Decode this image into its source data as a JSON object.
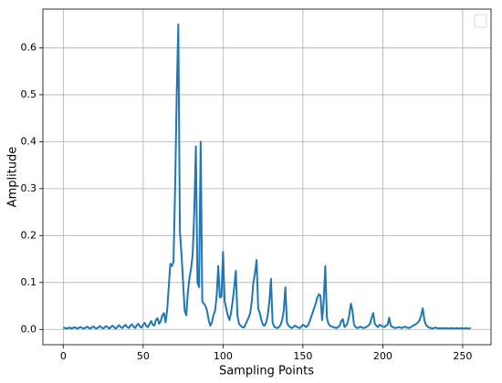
{
  "chart_data": {
    "type": "line",
    "xlabel": "Sampling Points",
    "ylabel": "Amplitude",
    "xlim": [
      -12.75,
      267.75
    ],
    "ylim": [
      -0.0325,
      0.6825
    ],
    "xticks": [
      0,
      50,
      100,
      150,
      200,
      250
    ],
    "yticks": [
      {
        "value": 0,
        "label": "0.0"
      },
      0.1,
      0.2,
      0.3,
      0.4,
      0.5,
      0.6
    ],
    "grid": true,
    "x": [
      0,
      1,
      2,
      3,
      4,
      5,
      6,
      7,
      8,
      9,
      10,
      11,
      12,
      13,
      14,
      15,
      16,
      17,
      18,
      19,
      20,
      21,
      22,
      23,
      24,
      25,
      26,
      27,
      28,
      29,
      30,
      31,
      32,
      33,
      34,
      35,
      36,
      37,
      38,
      39,
      40,
      41,
      42,
      43,
      44,
      45,
      46,
      47,
      48,
      49,
      50,
      51,
      52,
      53,
      54,
      55,
      56,
      57,
      58,
      59,
      60,
      61,
      62,
      63,
      64,
      65,
      66,
      67,
      68,
      69,
      70,
      71,
      72,
      73,
      74,
      75,
      76,
      77,
      78,
      79,
      80,
      81,
      82,
      83,
      84,
      85,
      86,
      87,
      88,
      89,
      90,
      91,
      92,
      93,
      94,
      95,
      96,
      97,
      98,
      99,
      100,
      101,
      102,
      103,
      104,
      105,
      106,
      107,
      108,
      109,
      110,
      111,
      112,
      113,
      114,
      115,
      116,
      117,
      118,
      119,
      120,
      121,
      122,
      123,
      124,
      125,
      126,
      127,
      128,
      129,
      130,
      131,
      132,
      133,
      134,
      135,
      136,
      137,
      138,
      139,
      140,
      141,
      142,
      143,
      144,
      145,
      146,
      147,
      148,
      149,
      150,
      151,
      152,
      153,
      154,
      155,
      156,
      157,
      158,
      159,
      160,
      161,
      162,
      163,
      164,
      165,
      166,
      167,
      168,
      169,
      170,
      171,
      172,
      173,
      174,
      175,
      176,
      177,
      178,
      179,
      180,
      181,
      182,
      183,
      184,
      185,
      186,
      187,
      188,
      189,
      190,
      191,
      192,
      193,
      194,
      195,
      196,
      197,
      198,
      199,
      200,
      201,
      202,
      203,
      204,
      205,
      206,
      207,
      208,
      209,
      210,
      211,
      212,
      213,
      214,
      215,
      216,
      217,
      218,
      219,
      220,
      221,
      222,
      223,
      224,
      225,
      226,
      227,
      228,
      229,
      230,
      231,
      232,
      233,
      234,
      235,
      236,
      237,
      238,
      239,
      240,
      241,
      242,
      243,
      244,
      245,
      246,
      247,
      248,
      249,
      250,
      251,
      252,
      253,
      254,
      255
    ],
    "series": [
      {
        "color": "#1f77b4",
        "values": [
          0.004,
          0.003,
          0.002,
          0.003,
          0.004,
          0.002,
          0.003,
          0.005,
          0.003,
          0.002,
          0.004,
          0.005,
          0.003,
          0.002,
          0.004,
          0.006,
          0.003,
          0.002,
          0.005,
          0.006,
          0.003,
          0.002,
          0.005,
          0.007,
          0.004,
          0.002,
          0.005,
          0.007,
          0.004,
          0.002,
          0.006,
          0.008,
          0.004,
          0.002,
          0.006,
          0.009,
          0.005,
          0.003,
          0.007,
          0.01,
          0.005,
          0.003,
          0.008,
          0.011,
          0.006,
          0.003,
          0.009,
          0.012,
          0.006,
          0.004,
          0.01,
          0.014,
          0.007,
          0.005,
          0.012,
          0.018,
          0.01,
          0.008,
          0.02,
          0.024,
          0.012,
          0.018,
          0.03,
          0.035,
          0.015,
          0.04,
          0.09,
          0.14,
          0.135,
          0.145,
          0.3,
          0.5,
          0.65,
          0.21,
          0.16,
          0.1,
          0.04,
          0.03,
          0.08,
          0.11,
          0.13,
          0.16,
          0.25,
          0.39,
          0.1,
          0.09,
          0.4,
          0.06,
          0.055,
          0.05,
          0.04,
          0.02,
          0.008,
          0.015,
          0.03,
          0.04,
          0.07,
          0.135,
          0.068,
          0.07,
          0.165,
          0.06,
          0.045,
          0.03,
          0.02,
          0.035,
          0.06,
          0.09,
          0.125,
          0.03,
          0.012,
          0.008,
          0.005,
          0.004,
          0.01,
          0.018,
          0.025,
          0.035,
          0.06,
          0.1,
          0.12,
          0.148,
          0.045,
          0.035,
          0.02,
          0.01,
          0.008,
          0.015,
          0.03,
          0.06,
          0.108,
          0.015,
          0.006,
          0.004,
          0.003,
          0.005,
          0.01,
          0.02,
          0.04,
          0.09,
          0.015,
          0.008,
          0.005,
          0.003,
          0.005,
          0.008,
          0.006,
          0.004,
          0.003,
          0.006,
          0.01,
          0.008,
          0.005,
          0.008,
          0.015,
          0.025,
          0.035,
          0.045,
          0.055,
          0.068,
          0.075,
          0.072,
          0.02,
          0.06,
          0.135,
          0.025,
          0.012,
          0.008,
          0.006,
          0.005,
          0.004,
          0.003,
          0.005,
          0.008,
          0.018,
          0.022,
          0.005,
          0.008,
          0.015,
          0.03,
          0.055,
          0.04,
          0.01,
          0.005,
          0.003,
          0.004,
          0.006,
          0.004,
          0.003,
          0.004,
          0.006,
          0.008,
          0.012,
          0.025,
          0.035,
          0.012,
          0.008,
          0.005,
          0.01,
          0.008,
          0.006,
          0.005,
          0.008,
          0.01,
          0.025,
          0.008,
          0.005,
          0.004,
          0.003,
          0.004,
          0.005,
          0.004,
          0.003,
          0.005,
          0.006,
          0.004,
          0.003,
          0.004,
          0.006,
          0.008,
          0.01,
          0.012,
          0.015,
          0.02,
          0.03,
          0.045,
          0.02,
          0.01,
          0.006,
          0.004,
          0.003,
          0.002,
          0.003,
          0.004,
          0.003,
          0.002,
          0.003,
          0.002,
          0.003,
          0.002,
          0.003,
          0.002,
          0.002,
          0.003,
          0.002,
          0.002,
          0.003,
          0.002,
          0.002,
          0.003,
          0.002,
          0.002,
          0.003,
          0.002,
          0.002,
          0.003
        ]
      }
    ]
  }
}
